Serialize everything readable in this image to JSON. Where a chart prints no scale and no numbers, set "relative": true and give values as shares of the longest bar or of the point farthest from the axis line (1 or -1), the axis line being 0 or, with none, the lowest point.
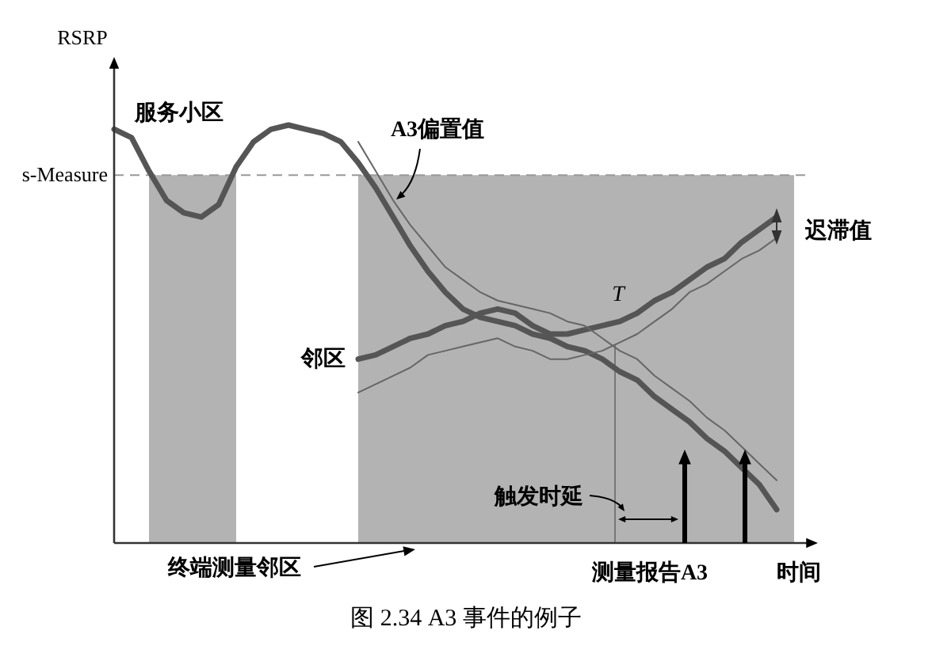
{
  "chart_data": {
    "type": "line",
    "title": "图 2.34    A3 事件的例子",
    "xlabel": "时间",
    "ylabel": "RSRP",
    "relative": true,
    "categories": [
      null,
      null,
      null,
      null,
      null,
      null,
      null,
      null,
      null,
      null,
      null,
      null,
      null,
      null,
      null,
      null,
      null,
      null,
      null,
      null,
      null,
      null,
      null,
      null,
      null,
      null,
      null,
      null,
      null,
      null,
      null,
      null,
      null,
      null,
      null,
      null,
      null,
      null,
      null,
      null,
      null
    ],
    "series": [
      {
        "type": "area",
        "color": "#b3b3b3",
        "values": [
          null,
          null,
          0.88,
          0.88,
          0.88,
          0.88,
          0.88,
          0.88,
          null,
          null,
          null,
          null,
          null,
          null,
          0.88,
          0.88,
          0.88,
          0.88,
          0.88,
          0.88,
          0.88,
          0.88,
          0.88,
          0.88,
          0.88,
          0.88,
          0.88,
          0.88,
          0.88,
          0.88,
          0.88,
          0.88,
          0.88,
          0.88,
          0.88,
          0.88,
          0.88,
          0.88,
          0.88,
          0.88,
          null
        ]
      },
      {
        "name": "服务小区",
        "color": "#555555",
        "values": [
          0.99,
          0.97,
          0.89,
          0.82,
          0.79,
          0.78,
          0.81,
          0.9,
          0.96,
          0.99,
          1,
          0.99,
          0.98,
          0.96,
          0.91,
          0.85,
          0.78,
          0.71,
          0.65,
          0.6,
          0.56,
          0.54,
          0.53,
          0.52,
          0.5,
          0.49,
          0.47,
          0.46,
          0.44,
          0.41,
          0.39,
          0.35,
          0.32,
          0.29,
          0.25,
          0.22,
          0.18,
          0.14,
          0.08,
          null,
          null
        ]
      },
      {
        "name": "邻区",
        "color": "#555555",
        "values": [
          null,
          null,
          null,
          null,
          null,
          null,
          null,
          null,
          null,
          null,
          null,
          null,
          null,
          null,
          0.44,
          0.45,
          0.47,
          0.49,
          0.5,
          0.52,
          0.53,
          0.55,
          0.56,
          0.55,
          0.52,
          0.5,
          0.5,
          0.51,
          0.52,
          0.53,
          0.55,
          0.58,
          0.6,
          0.63,
          0.66,
          0.68,
          0.72,
          0.75,
          0.78,
          null,
          null
        ]
      },
      {
        "color": "#666666",
        "values": [
          null,
          null,
          null,
          null,
          null,
          null,
          null,
          null,
          null,
          null,
          null,
          null,
          null,
          null,
          0.96,
          0.89,
          0.82,
          0.76,
          0.71,
          0.66,
          0.63,
          0.6,
          0.58,
          0.57,
          0.56,
          0.55,
          0.53,
          0.52,
          0.49,
          0.46,
          0.44,
          0.4,
          0.37,
          0.34,
          0.3,
          0.27,
          0.23,
          0.19,
          0.15,
          null,
          null
        ]
      },
      {
        "color": "#666666",
        "values": [
          null,
          null,
          null,
          null,
          null,
          null,
          null,
          null,
          null,
          null,
          null,
          null,
          null,
          null,
          0.36,
          0.38,
          0.4,
          0.42,
          0.45,
          0.46,
          0.47,
          0.48,
          0.49,
          0.47,
          0.46,
          0.44,
          0.44,
          0.45,
          0.46,
          0.48,
          0.5,
          0.53,
          0.56,
          0.6,
          0.62,
          0.65,
          0.68,
          0.7,
          0.73,
          null,
          null
        ]
      }
    ],
    "ref_lines": [
      {
        "axis": "y",
        "value": 0.88,
        "label": "s-Measure",
        "color": "#999999",
        "line_style": "dashed"
      }
    ],
    "annotations": [
      "A3偏置值",
      "迟滞值",
      "触发时延",
      "终端测量邻区",
      "测量报告A3",
      "T"
    ]
  }
}
